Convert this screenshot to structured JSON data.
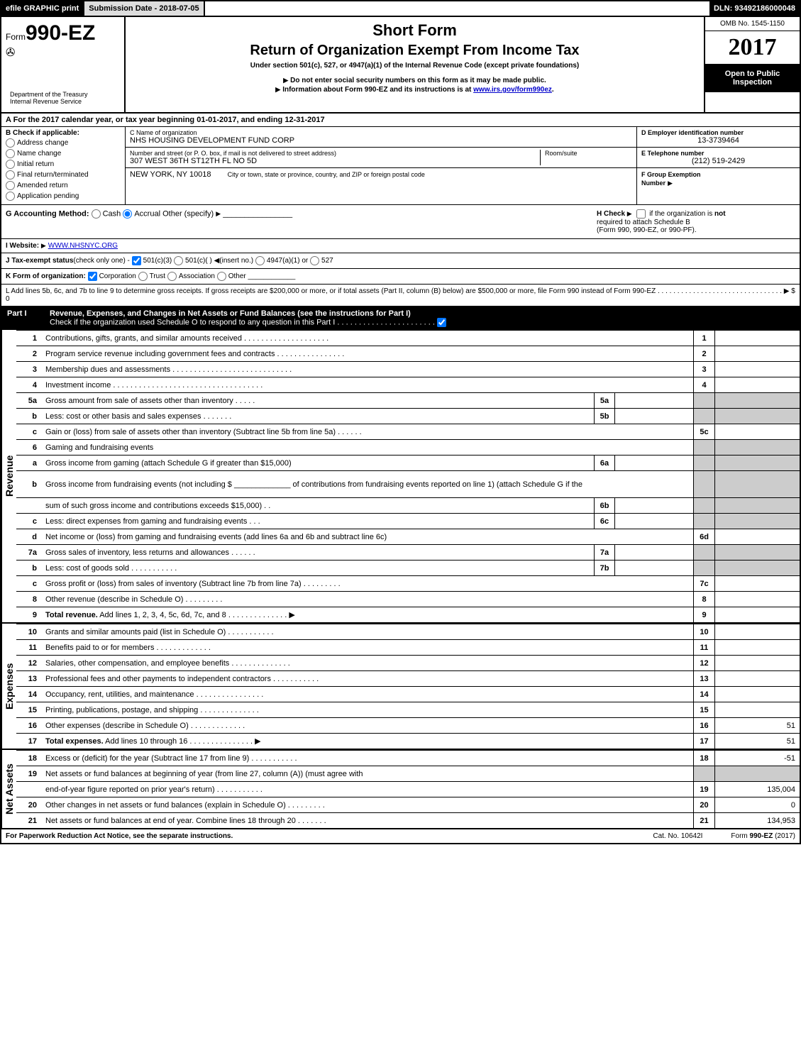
{
  "top": {
    "efile": "efile GRAPHIC print",
    "subdate_label": "Submission Date - ",
    "subdate": "2018-07-05",
    "dln_label": "DLN: ",
    "dln": "93492186000048"
  },
  "header": {
    "form_prefix": "Form",
    "form_num": "990-EZ",
    "short_form": "Short Form",
    "title": "Return of Organization Exempt From Income Tax",
    "subtitle": "Under section 501(c), 527, or 4947(a)(1) of the Internal Revenue Code (except private foundations)",
    "note1": "Do not enter social security numbers on this form as it may be made public.",
    "note2_pre": "Information about Form 990-EZ and its instructions is at ",
    "note2_link": "www.irs.gov/form990ez",
    "note2_post": ".",
    "omb": "OMB No. 1545-1150",
    "year": "2017",
    "open1": "Open to Public",
    "open2": "Inspection",
    "dept1": "Department of the Treasury",
    "dept2": "Internal Revenue Service"
  },
  "lineA": {
    "pre": "A  For the 2017 calendar year, or tax year beginning ",
    "begin": "01-01-2017",
    "mid": ", and ending ",
    "end": "12-31-2017"
  },
  "colB": {
    "label": "B  Check if applicable:",
    "opts": [
      "Address change",
      "Name change",
      "Initial return",
      "Final return/terminated",
      "Amended return",
      "Application pending"
    ]
  },
  "colC": {
    "name_label": "C Name of organization",
    "name": "NHS HOUSING DEVELOPMENT FUND CORP",
    "addr_label": "Number and street (or P. O. box, if mail is not delivered to street address)",
    "addr": "307 WEST 36TH ST12TH FL NO 5D",
    "room_label": "Room/suite",
    "city_label": "City or town, state or province, country, and ZIP or foreign postal code",
    "city": "NEW YORK, NY  10018"
  },
  "colD": {
    "d_label": "D Employer identification number",
    "d_val": "13-3739464",
    "e_label": "E Telephone number",
    "e_val": "(212) 519-2429",
    "f_label": "F Group Exemption",
    "f_label2": "Number"
  },
  "lineG": {
    "label": "G Accounting Method:",
    "cash": "Cash",
    "accrual": "Accrual",
    "other": "Other (specify)",
    "h_label": "H  Check",
    "h_text1": "if the organization is ",
    "h_not": "not",
    "h_text2": "required to attach Schedule B",
    "h_text3": "(Form 990, 990-EZ, or 990-PF)."
  },
  "lineI": {
    "label": "I Website:",
    "val": "WWW.NHSNYC.ORG"
  },
  "lineJ": {
    "label": "J Tax-exempt status",
    "note": "(check only one) - ",
    "o1": "501(c)(3)",
    "o2": "501(c)(  )",
    "o2b": "(insert no.)",
    "o3": "4947(a)(1) or",
    "o4": "527"
  },
  "lineK": {
    "label": "K Form of organization:",
    "o1": "Corporation",
    "o2": "Trust",
    "o3": "Association",
    "o4": "Other"
  },
  "lineL": {
    "text": "L Add lines 5b, 6c, and 7b to line 9 to determine gross receipts. If gross receipts are $200,000 or more, or if total assets (Part II, column (B) below) are $500,000 or more, file Form 990 instead of Form 990-EZ  .  .  .  .  .  .  .  .  .  .  .  .  .  .  .  .  .  .  .  .  .  .  .  .  .  .  .  .  .  .  .  .  ▶ $ 0"
  },
  "part1": {
    "label": "Part I",
    "title": "Revenue, Expenses, and Changes in Net Assets or Fund Balances (see the instructions for Part I)",
    "check": "Check if the organization used Schedule O to respond to any question in this Part I .  .  .  .  .  .  .  .  .  .  .  .  .  .  .  .  .  .  .  .  .  .  .  "
  },
  "sections": {
    "revenue": "Revenue",
    "expenses": "Expenses",
    "netassets": "Net Assets"
  },
  "rows": [
    {
      "n": "1",
      "d": "Contributions, gifts, grants, and similar amounts received  .   .   .   .   .   .   .   .   .   .   .   .   .   .   .   .   .   .   .   .",
      "r": "1",
      "rv": ""
    },
    {
      "n": "2",
      "d": "Program service revenue including government fees and contracts  .   .   .   .   .   .   .   .   .   .   .   .   .   .   .   .",
      "r": "2",
      "rv": ""
    },
    {
      "n": "3",
      "d": "Membership dues and assessments  .   .   .   .   .   .   .   .   .   .   .   .   .   .   .   .   .   .   .   .   .   .   .   .   .   .   .   .",
      "r": "3",
      "rv": ""
    },
    {
      "n": "4",
      "d": "Investment income  .   .   .   .   .   .   .   .   .   .   .   .   .   .   .   .   .   .   .   .   .   .   .   .   .   .   .   .   .   .   .   .   .   .   .",
      "r": "4",
      "rv": ""
    },
    {
      "n": "5a",
      "d": "Gross amount from sale of assets other than inventory  .   .   .   .   .",
      "m": "5a",
      "shade_r": true
    },
    {
      "n": "b",
      "d": "Less: cost or other basis and sales expenses  .   .   .   .   .   .   .",
      "m": "5b",
      "shade_r": true
    },
    {
      "n": "c",
      "d": "Gain or (loss) from sale of assets other than inventory (Subtract line 5b from line 5a)             .    .    .    .    .    .",
      "r": "5c",
      "rv": ""
    },
    {
      "n": "6",
      "d": "Gaming and fundraising events",
      "shade_r": true
    },
    {
      "n": "a",
      "d": "Gross income from gaming (attach Schedule G if greater than $15,000)",
      "m": "6a",
      "shade_r": true
    },
    {
      "n": "b",
      "d": "Gross income from fundraising events (not including $ _____________ of contributions from fundraising events reported on line 1) (attach Schedule G if the",
      "shade_r": true,
      "tall": true
    },
    {
      "n": "",
      "d": "sum of such gross income and contributions exceeds $15,000)        .    .",
      "m": "6b",
      "shade_r": true
    },
    {
      "n": "c",
      "d": "Less: direct expenses from gaming and fundraising events          .    .    .",
      "m": "6c",
      "shade_r": true
    },
    {
      "n": "d",
      "d": "Net income or (loss) from gaming and fundraising events (add lines 6a and 6b and subtract line 6c)",
      "r": "6d",
      "rv": ""
    },
    {
      "n": "7a",
      "d": "Gross sales of inventory, less returns and allowances               .    .    .    .    .    .",
      "m": "7a",
      "shade_r": true
    },
    {
      "n": "b",
      "d": "Less: cost of goods sold                    .    .    .    .    .    .    .    .    .    .    .",
      "m": "7b",
      "shade_r": true
    },
    {
      "n": "c",
      "d": "Gross profit or (loss) from sales of inventory (Subtract line 7b from line 7a)          .    .    .    .    .    .    .    .    .",
      "r": "7c",
      "rv": ""
    },
    {
      "n": "8",
      "d": "Other revenue (describe in Schedule O)                                        .    .    .    .    .    .    .    .    .",
      "r": "8",
      "rv": ""
    },
    {
      "n": "9",
      "d": "Total revenue. Add lines 1, 2, 3, 4, 5c, 6d, 7c, and 8            .    .    .    .    .    .    .    .    .    .    .    .    .    .    ▶",
      "r": "9",
      "rv": "",
      "bold": true
    }
  ],
  "exp_rows": [
    {
      "n": "10",
      "d": "Grants and similar amounts paid (list in Schedule O)                    .    .    .    .    .    .    .    .    .    .    .",
      "r": "10",
      "rv": ""
    },
    {
      "n": "11",
      "d": "Benefits paid to or for members                                      .    .    .    .    .    .    .    .    .    .    .    .    .",
      "r": "11",
      "rv": ""
    },
    {
      "n": "12",
      "d": "Salaries, other compensation, and employee benefits          .    .    .    .    .    .    .    .    .    .    .    .    .    .",
      "r": "12",
      "rv": ""
    },
    {
      "n": "13",
      "d": "Professional fees and other payments to independent contractors      .    .    .    .    .    .    .    .    .    .    .",
      "r": "13",
      "rv": ""
    },
    {
      "n": "14",
      "d": "Occupancy, rent, utilities, and maintenance            .    .    .    .    .    .    .    .    .    .    .    .    .    .    .    .",
      "r": "14",
      "rv": ""
    },
    {
      "n": "15",
      "d": "Printing, publications, postage, and shipping                    .    .    .    .    .    .    .    .    .    .    .    .    .    .",
      "r": "15",
      "rv": ""
    },
    {
      "n": "16",
      "d": "Other expenses (describe in Schedule O)                          .    .    .    .    .    .    .    .    .    .    .    .    .",
      "r": "16",
      "rv": "51"
    },
    {
      "n": "17",
      "d": "Total expenses. Add lines 10 through 16                  .    .    .    .    .    .    .    .    .    .    .    .    .    .    .    ▶",
      "r": "17",
      "rv": "51",
      "bold": true
    }
  ],
  "na_rows": [
    {
      "n": "18",
      "d": "Excess or (deficit) for the year (Subtract line 17 from line 9)              .    .    .    .    .    .    .    .    .    .    .",
      "r": "18",
      "rv": "-51"
    },
    {
      "n": "19",
      "d": "Net assets or fund balances at beginning of year (from line 27, column (A)) (must agree with",
      "shade_r": true
    },
    {
      "n": "",
      "d": "end-of-year figure reported on prior year's return)                    .    .    .    .    .    .    .    .    .    .    .",
      "r": "19",
      "rv": "135,004"
    },
    {
      "n": "20",
      "d": "Other changes in net assets or fund balances (explain in Schedule O)        .    .    .    .    .    .    .    .    .",
      "r": "20",
      "rv": "0"
    },
    {
      "n": "21",
      "d": "Net assets or fund balances at end of year. Combine lines 18 through 20            .    .    .    .    .    .    .",
      "r": "21",
      "rv": "134,953"
    }
  ],
  "footer": {
    "left": "For Paperwork Reduction Act Notice, see the separate instructions.",
    "mid": "Cat. No. 10642I",
    "right_pre": "Form ",
    "right_form": "990-EZ",
    "right_post": " (2017)"
  },
  "colors": {
    "black": "#000000",
    "shade": "#cccccc",
    "headershade": "#dddddd"
  }
}
